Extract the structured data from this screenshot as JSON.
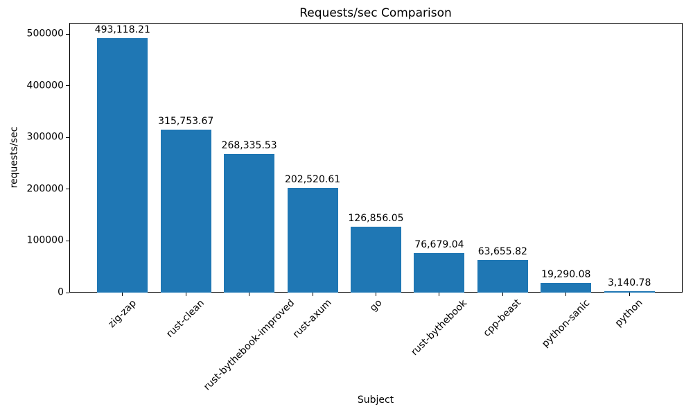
{
  "chart_data": {
    "type": "bar",
    "title": "Requests/sec Comparison",
    "xlabel": "Subject",
    "ylabel": "requests/sec",
    "categories": [
      "zig-zap",
      "rust-clean",
      "rust-bythebook-improved",
      "rust-axum",
      "go",
      "rust-bythebook",
      "cpp-beast",
      "python-sanic",
      "python"
    ],
    "values": [
      493118.21,
      315753.67,
      268335.53,
      202520.61,
      126856.05,
      76679.04,
      63655.82,
      19290.08,
      3140.78
    ],
    "value_labels": [
      "493,118.21",
      "315,753.67",
      "268,335.53",
      "202,520.61",
      "126,856.05",
      "76,679.04",
      "63,655.82",
      "19,290.08",
      "3,140.78"
    ],
    "ytick_values": [
      0,
      100000,
      200000,
      300000,
      400000,
      500000
    ],
    "ytick_labels": [
      "0",
      "100000",
      "200000",
      "300000",
      "400000",
      "500000"
    ],
    "ylim": [
      0,
      522000
    ],
    "bar_color": "#1f77b4",
    "grid": false,
    "legend": null,
    "x_tick_rotation_deg": 45
  }
}
